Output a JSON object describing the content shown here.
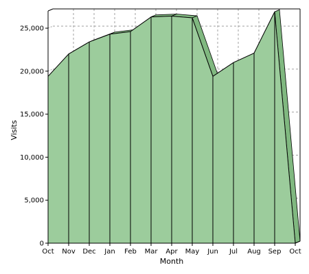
{
  "chart_data": {
    "type": "area",
    "title": "",
    "xlabel": "Month",
    "ylabel": "Visits",
    "categories": [
      "Oct",
      "Nov",
      "Dec",
      "Jan",
      "Feb",
      "Mar",
      "Apr",
      "May",
      "Jun",
      "Jul",
      "Aug",
      "Sep",
      "Oct"
    ],
    "values": [
      19400,
      22000,
      23400,
      24300,
      24600,
      26300,
      26400,
      26200,
      19400,
      21000,
      22100,
      26900,
      0
    ],
    "ylim": [
      0,
      27000
    ],
    "yticks": [
      0,
      5000,
      10000,
      15000,
      20000,
      25000
    ],
    "ytick_labels": [
      "0",
      "5,000",
      "10,000",
      "15,000",
      "20,000",
      "25,000"
    ],
    "grid": true,
    "legend": "none",
    "colors": {
      "front": "#9ccc9c",
      "top": "#80b880",
      "side": "#6fae6f",
      "outline": "#000000",
      "grid": "#a0a0a0",
      "wall": "#ffffff"
    }
  }
}
